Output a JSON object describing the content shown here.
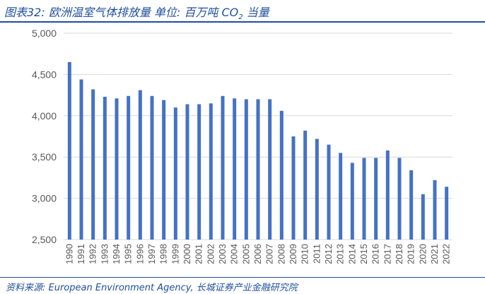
{
  "header": {
    "title_prefix": "图表32:  欧洲温室气体排放量  单位:  百万吨 CO",
    "title_sub": "2",
    "title_suffix": " 当量"
  },
  "footer": {
    "source": "资料来源:  European Environment Agency,  长城证券产业金融研究院"
  },
  "colors": {
    "bar": "#4472c4",
    "accent": "#1f4e9c",
    "grid": "#d9d9d9",
    "axis_text": "#595959"
  },
  "chart_data": {
    "type": "bar",
    "categories": [
      "1990",
      "1991",
      "1992",
      "1993",
      "1994",
      "1995",
      "1996",
      "1997",
      "1998",
      "1999",
      "2000",
      "2001",
      "2002",
      "2003",
      "2004",
      "2005",
      "2006",
      "2007",
      "2008",
      "2009",
      "2010",
      "2011",
      "2012",
      "2013",
      "2014",
      "2015",
      "2016",
      "2017",
      "2018",
      "2019",
      "2020",
      "2021",
      "2022"
    ],
    "values": [
      4650,
      4440,
      4320,
      4230,
      4210,
      4240,
      4310,
      4240,
      4190,
      4100,
      4140,
      4140,
      4150,
      4240,
      4210,
      4200,
      4200,
      4200,
      4060,
      3750,
      3820,
      3720,
      3650,
      3550,
      3430,
      3490,
      3490,
      3580,
      3490,
      3340,
      3050,
      3220,
      3140
    ],
    "ylim": [
      2500,
      5000
    ],
    "yticks": [
      2500,
      3000,
      3500,
      4000,
      4500,
      5000
    ],
    "ytick_labels": [
      "2,500",
      "3,000",
      "3,500",
      "4,000",
      "4,500",
      "5,000"
    ],
    "grid": true,
    "xlabel": "",
    "ylabel": ""
  }
}
